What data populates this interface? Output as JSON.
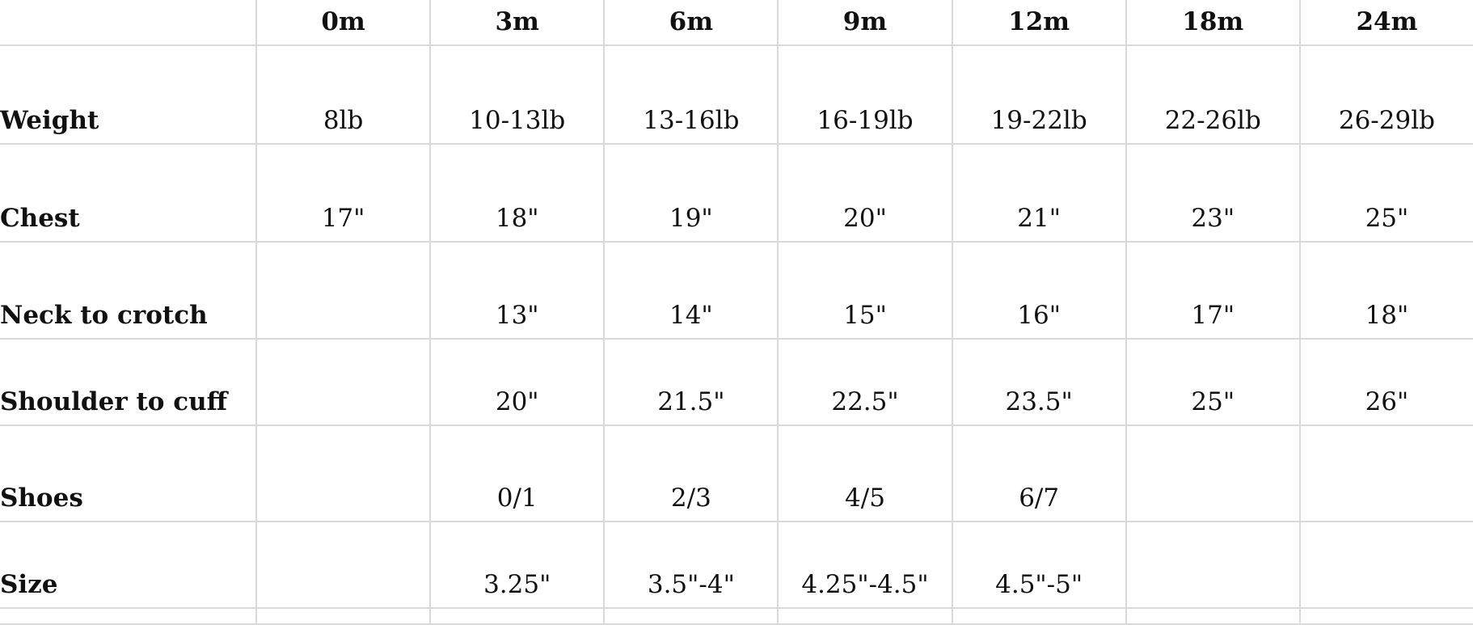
{
  "table": {
    "headers": [
      "",
      "0m",
      "3m",
      "6m",
      "9m",
      "12m",
      "18m",
      "24m"
    ],
    "rows": [
      {
        "label": "Weight",
        "cells": [
          "8lb",
          "10-13lb",
          "13-16lb",
          "16-19lb",
          "19-22lb",
          "22-26lb",
          "26-29lb"
        ]
      },
      {
        "label": "Chest",
        "cells": [
          "17\"",
          "18\"",
          "19\"",
          "20\"",
          "21\"",
          "23\"",
          "25\""
        ]
      },
      {
        "label": "Neck to crotch",
        "cells": [
          "",
          "13\"",
          "14\"",
          "15\"",
          "16\"",
          "17\"",
          "18\""
        ]
      },
      {
        "label": "Shoulder to cuff",
        "cells": [
          "",
          "20\"",
          "21.5\"",
          "22.5\"",
          "23.5\"",
          "25\"",
          "26\""
        ]
      },
      {
        "label": "Shoes",
        "cells": [
          "",
          "0/1",
          "2/3",
          "4/5",
          "6/7",
          "",
          ""
        ]
      },
      {
        "label": "Size",
        "cells": [
          "",
          "3.25\"",
          "3.5\"-4\"",
          "4.25\"-4.5\"",
          "4.5\"-5\"",
          "",
          ""
        ]
      }
    ]
  }
}
